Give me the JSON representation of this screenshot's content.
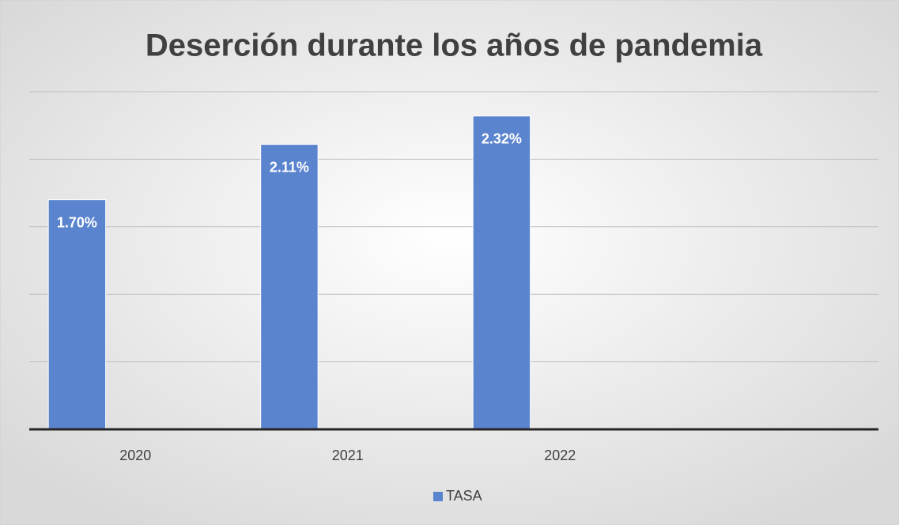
{
  "chart_data": {
    "type": "bar",
    "title": "Deserción durante los años de pandemia",
    "categories": [
      "2020",
      "2021",
      "2022",
      null
    ],
    "series": [
      {
        "name": "TASA",
        "color": "#5b84cf",
        "values": [
          1.7,
          2.11,
          2.32,
          null
        ],
        "value_labels": [
          "1.70%",
          "2.11%",
          "2.32%",
          null
        ]
      }
    ],
    "ylim": [
      0,
      2.5
    ],
    "yticks": [
      0,
      0.5,
      1,
      1.5,
      2,
      2.5
    ],
    "grid": true,
    "legend": "bottom"
  }
}
